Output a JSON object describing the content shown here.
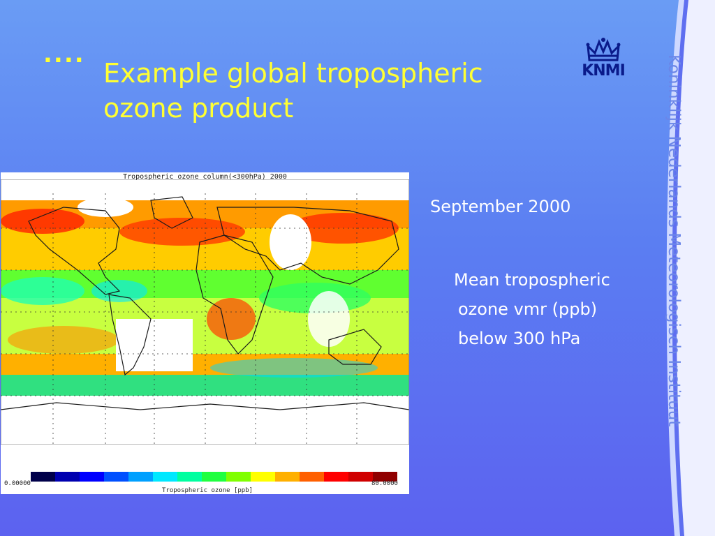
{
  "slide": {
    "bullet": "....",
    "title_line1": "Example global tropospheric",
    "title_line2": "ozone product",
    "logo_text": "KNMI",
    "vertical_text": "Koninklijk Nederlands Meteorologisch Instituut",
    "caption_date": "September 2000",
    "caption_lines": [
      "Mean tropospheric",
      "ozone vmr (ppb)",
      "below 300 hPa"
    ]
  },
  "map": {
    "title": "Tropospheric ozone column(<300hPa) 2000",
    "colorbar_min": "0.00000",
    "colorbar_max": "80.0000",
    "colorbar_label": "Tropospheric ozone [ppb]",
    "colorbar_colors": [
      "#00004a",
      "#0000b0",
      "#0000ff",
      "#0050ff",
      "#00a0ff",
      "#00e8ff",
      "#00ffa0",
      "#20ff40",
      "#80ff00",
      "#ffff00",
      "#ffb000",
      "#ff6000",
      "#ff0000",
      "#d00000",
      "#900000"
    ]
  },
  "colors": {
    "title": "#ffff33",
    "caption": "#ffffff",
    "vertical_text": "#6b86e8",
    "logo": "#0a1a8a"
  }
}
